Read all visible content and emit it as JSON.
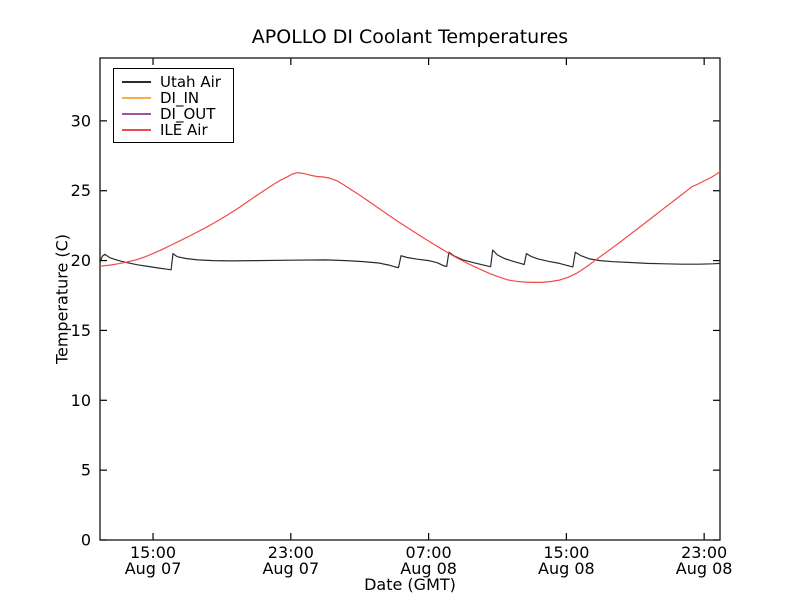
{
  "figure": {
    "title": "APOLLO DI Coolant Temperatures",
    "xlabel": "Date (GMT)",
    "ylabel": "Temperature (C)"
  },
  "chart_data": {
    "type": "line",
    "title": "APOLLO DI Coolant Temperatures",
    "xlabel": "Date (GMT)",
    "ylabel": "Temperature (C)",
    "x_unit": "hours since Aug 07 00:00 GMT",
    "xlim": [
      11.92,
      47.92
    ],
    "ylim": [
      0,
      34.5
    ],
    "grid": false,
    "legend_position": "upper left",
    "yticks": [
      0,
      5,
      10,
      15,
      20,
      25,
      30
    ],
    "xticks": [
      {
        "hour": 15,
        "time": "15:00",
        "date": "Aug 07"
      },
      {
        "hour": 23,
        "time": "23:00",
        "date": "Aug 07"
      },
      {
        "hour": 31,
        "time": "07:00",
        "date": "Aug 08"
      },
      {
        "hour": 39,
        "time": "15:00",
        "date": "Aug 08"
      },
      {
        "hour": 47,
        "time": "23:00",
        "date": "Aug 08"
      }
    ],
    "series": [
      {
        "name": "Utah Air",
        "color": "#2b2b2b",
        "visible_in_plot": true,
        "points": [
          [
            11.92,
            19.85
          ],
          [
            12.05,
            20.3
          ],
          [
            12.2,
            20.45
          ],
          [
            12.5,
            20.2
          ],
          [
            13.0,
            20.0
          ],
          [
            13.5,
            19.85
          ],
          [
            14.1,
            19.7
          ],
          [
            14.7,
            19.58
          ],
          [
            15.3,
            19.47
          ],
          [
            15.8,
            19.38
          ],
          [
            16.05,
            19.34
          ],
          [
            16.16,
            20.5
          ],
          [
            16.4,
            20.28
          ],
          [
            16.9,
            20.15
          ],
          [
            17.6,
            20.05
          ],
          [
            18.5,
            20.0
          ],
          [
            19.5,
            19.98
          ],
          [
            21.0,
            20.0
          ],
          [
            23.0,
            20.03
          ],
          [
            25.0,
            20.05
          ],
          [
            26.2,
            20.0
          ],
          [
            27.2,
            19.93
          ],
          [
            28.1,
            19.83
          ],
          [
            28.7,
            19.68
          ],
          [
            29.05,
            19.55
          ],
          [
            29.25,
            19.5
          ],
          [
            29.4,
            20.35
          ],
          [
            29.75,
            20.22
          ],
          [
            30.35,
            20.1
          ],
          [
            31.0,
            20.0
          ],
          [
            31.5,
            19.85
          ],
          [
            31.9,
            19.62
          ],
          [
            32.05,
            19.58
          ],
          [
            32.18,
            20.6
          ],
          [
            32.5,
            20.32
          ],
          [
            33.0,
            20.05
          ],
          [
            33.7,
            19.82
          ],
          [
            34.4,
            19.62
          ],
          [
            34.6,
            19.56
          ],
          [
            34.72,
            20.75
          ],
          [
            35.0,
            20.4
          ],
          [
            35.4,
            20.15
          ],
          [
            35.9,
            19.95
          ],
          [
            36.35,
            19.8
          ],
          [
            36.55,
            19.72
          ],
          [
            36.68,
            20.5
          ],
          [
            36.95,
            20.3
          ],
          [
            37.35,
            20.12
          ],
          [
            37.95,
            19.95
          ],
          [
            38.6,
            19.8
          ],
          [
            39.2,
            19.6
          ],
          [
            39.38,
            19.55
          ],
          [
            39.52,
            20.6
          ],
          [
            39.85,
            20.35
          ],
          [
            40.35,
            20.12
          ],
          [
            40.95,
            20.0
          ],
          [
            41.7,
            19.92
          ],
          [
            42.7,
            19.86
          ],
          [
            43.7,
            19.8
          ],
          [
            44.7,
            19.77
          ],
          [
            45.7,
            19.74
          ],
          [
            46.7,
            19.74
          ],
          [
            47.5,
            19.77
          ],
          [
            47.92,
            19.8
          ]
        ]
      },
      {
        "name": "DI_IN",
        "color": "#fbae46",
        "visible_in_plot": false,
        "points": []
      },
      {
        "name": "DI_OUT",
        "color": "#a0549e",
        "visible_in_plot": false,
        "points": []
      },
      {
        "name": "ILE Air",
        "color": "#f04a4a",
        "visible_in_plot": true,
        "points": [
          [
            11.92,
            19.6
          ],
          [
            12.5,
            19.68
          ],
          [
            13.0,
            19.78
          ],
          [
            13.5,
            19.9
          ],
          [
            14.0,
            20.05
          ],
          [
            14.5,
            20.25
          ],
          [
            15.0,
            20.5
          ],
          [
            15.5,
            20.78
          ],
          [
            16.0,
            21.08
          ],
          [
            16.5,
            21.38
          ],
          [
            17.0,
            21.68
          ],
          [
            17.5,
            22.0
          ],
          [
            18.0,
            22.32
          ],
          [
            18.5,
            22.66
          ],
          [
            19.0,
            23.02
          ],
          [
            19.5,
            23.4
          ],
          [
            20.0,
            23.8
          ],
          [
            20.5,
            24.22
          ],
          [
            21.0,
            24.65
          ],
          [
            21.5,
            25.05
          ],
          [
            22.0,
            25.45
          ],
          [
            22.4,
            25.75
          ],
          [
            22.8,
            26.0
          ],
          [
            23.1,
            26.2
          ],
          [
            23.4,
            26.3
          ],
          [
            23.8,
            26.22
          ],
          [
            24.1,
            26.12
          ],
          [
            24.5,
            26.02
          ],
          [
            24.9,
            25.98
          ],
          [
            25.3,
            25.88
          ],
          [
            25.7,
            25.7
          ],
          [
            26.1,
            25.4
          ],
          [
            26.6,
            25.0
          ],
          [
            27.1,
            24.6
          ],
          [
            27.6,
            24.18
          ],
          [
            28.1,
            23.75
          ],
          [
            28.6,
            23.32
          ],
          [
            29.1,
            22.9
          ],
          [
            29.6,
            22.5
          ],
          [
            30.1,
            22.1
          ],
          [
            30.6,
            21.7
          ],
          [
            31.1,
            21.32
          ],
          [
            31.6,
            20.95
          ],
          [
            32.1,
            20.58
          ],
          [
            32.6,
            20.22
          ],
          [
            33.1,
            19.9
          ],
          [
            33.6,
            19.6
          ],
          [
            34.1,
            19.32
          ],
          [
            34.6,
            19.05
          ],
          [
            35.1,
            18.82
          ],
          [
            35.6,
            18.62
          ],
          [
            36.1,
            18.52
          ],
          [
            36.6,
            18.46
          ],
          [
            37.1,
            18.44
          ],
          [
            37.6,
            18.44
          ],
          [
            38.1,
            18.5
          ],
          [
            38.6,
            18.6
          ],
          [
            39.1,
            18.8
          ],
          [
            39.6,
            19.1
          ],
          [
            40.1,
            19.5
          ],
          [
            40.6,
            19.95
          ],
          [
            41.1,
            20.4
          ],
          [
            41.6,
            20.85
          ],
          [
            42.1,
            21.3
          ],
          [
            42.6,
            21.78
          ],
          [
            43.1,
            22.25
          ],
          [
            43.6,
            22.72
          ],
          [
            44.1,
            23.2
          ],
          [
            44.6,
            23.68
          ],
          [
            45.1,
            24.15
          ],
          [
            45.6,
            24.62
          ],
          [
            46.0,
            25.0
          ],
          [
            46.3,
            25.3
          ],
          [
            46.6,
            25.45
          ],
          [
            47.0,
            25.7
          ],
          [
            47.4,
            25.95
          ],
          [
            47.92,
            26.35
          ]
        ]
      }
    ]
  }
}
